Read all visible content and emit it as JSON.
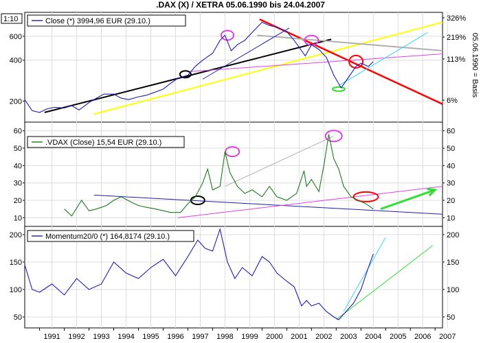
{
  "header": {
    "title": ".DAX (X) / XETRA 05.06.1990 bis 24.04.2007"
  },
  "corner_label": "1:10",
  "colors": {
    "dax": "#1c1cb4",
    "vdax": "#1a7a1a",
    "momentum": "#1c1cb4",
    "trend_black": "#000000",
    "trend_yellow": "#ffff00",
    "trend_red": "#ff0000",
    "trend_magenta": "#e040e0",
    "trend_gray": "#b0b0b0",
    "trend_cyan": "#3cd2ff",
    "trend_green": "#33dd33",
    "trend_blue": "#1c1cb4"
  },
  "chart_data": [
    {
      "type": "line",
      "name": "dax-panel",
      "legend": "Close (*) 3994,96 EUR (29.10.)",
      "scale": "log",
      "ylim": [
        140,
        900
      ],
      "y_ticks": [
        200,
        400,
        600
      ],
      "right_ticks": [
        "326%",
        "219%",
        "113%",
        "6%"
      ],
      "right_axis_label": "05.06.1990 = Basis",
      "x": [
        1990.4,
        1990.7,
        1991.0,
        1991.3,
        1991.6,
        1992.0,
        1992.3,
        1992.6,
        1993.0,
        1993.3,
        1993.6,
        1994.0,
        1994.3,
        1994.6,
        1995.0,
        1995.3,
        1995.6,
        1996.0,
        1996.3,
        1996.6,
        1997.0,
        1997.3,
        1997.6,
        1998.0,
        1998.3,
        1998.5,
        1998.75,
        1999.0,
        1999.3,
        1999.6,
        2000.0,
        2000.3,
        2000.6,
        2001.0,
        2001.3,
        2001.6,
        2001.75,
        2002.0,
        2002.3,
        2002.6,
        2002.9,
        2003.2,
        2003.5,
        2003.8,
        2004.0,
        2004.3,
        2004.5
      ],
      "values": [
        205,
        170,
        165,
        175,
        180,
        178,
        185,
        172,
        195,
        210,
        225,
        225,
        210,
        205,
        215,
        220,
        230,
        245,
        270,
        295,
        310,
        360,
        400,
        450,
        560,
        610,
        470,
        520,
        560,
        640,
        760,
        720,
        700,
        650,
        560,
        470,
        430,
        520,
        480,
        420,
        310,
        250,
        300,
        360,
        380,
        360,
        390
      ],
      "x_range": [
        1990.4,
        2007.3
      ]
    },
    {
      "type": "line",
      "name": "vdax-panel",
      "legend": ".VDAX (Close) 15,54 EUR (29.10.)",
      "ylim": [
        5,
        65
      ],
      "y_ticks": [
        10,
        20,
        30,
        40,
        50,
        60
      ],
      "x": [
        1992.0,
        1992.3,
        1992.7,
        1993.0,
        1993.3,
        1993.7,
        1994.0,
        1994.3,
        1994.7,
        1995.0,
        1995.3,
        1995.7,
        1996.0,
        1996.3,
        1996.7,
        1997.0,
        1997.3,
        1997.6,
        1997.8,
        1998.0,
        1998.3,
        1998.5,
        1998.7,
        1999.0,
        1999.3,
        1999.6,
        2000.0,
        2000.3,
        2000.6,
        2001.0,
        2001.4,
        2001.7,
        2001.8,
        2002.0,
        2002.3,
        2002.5,
        2002.7,
        2002.9,
        2003.1,
        2003.3,
        2003.6,
        2003.9,
        2004.2,
        2004.5
      ],
      "values": [
        15,
        11,
        20,
        14,
        15,
        17,
        20,
        22,
        19,
        17,
        16,
        15,
        14,
        13,
        13,
        18,
        22,
        30,
        38,
        26,
        28,
        48,
        36,
        28,
        24,
        26,
        22,
        28,
        22,
        20,
        24,
        37,
        28,
        32,
        25,
        40,
        58,
        44,
        38,
        28,
        22,
        20,
        18,
        15
      ]
    },
    {
      "type": "line",
      "name": "momentum-panel",
      "legend": "Momentum20/0 (*) 164,8174 (29.10.)",
      "ylim": [
        30,
        215
      ],
      "y_ticks": [
        50,
        100,
        150,
        200
      ],
      "x": [
        1990.4,
        1990.7,
        1991.0,
        1991.5,
        1992.0,
        1992.5,
        1993.0,
        1993.5,
        1994.0,
        1994.5,
        1995.0,
        1995.5,
        1996.0,
        1996.5,
        1997.0,
        1997.4,
        1997.7,
        1998.0,
        1998.3,
        1998.6,
        1998.9,
        1999.2,
        1999.6,
        2000.0,
        2000.3,
        2000.6,
        2001.0,
        2001.3,
        2001.6,
        2001.8,
        2002.0,
        2002.3,
        2002.6,
        2002.9,
        2003.1,
        2003.4,
        2003.7,
        2004.0,
        2004.3,
        2004.5
      ],
      "values": [
        145,
        100,
        95,
        110,
        90,
        120,
        100,
        110,
        150,
        130,
        120,
        140,
        155,
        125,
        160,
        190,
        175,
        170,
        210,
        150,
        120,
        140,
        125,
        160,
        150,
        130,
        115,
        105,
        70,
        80,
        70,
        75,
        60,
        50,
        45,
        60,
        75,
        100,
        140,
        165
      ]
    }
  ],
  "x_axis": {
    "ticks": [
      "1991",
      "1992",
      "1993",
      "1994",
      "1995",
      "1996",
      "1997",
      "1998",
      "1999",
      "2000",
      "2001",
      "2002",
      "2003",
      "2004",
      "2005",
      "2006",
      "2007"
    ],
    "range": [
      1990.4,
      2007.3
    ]
  }
}
